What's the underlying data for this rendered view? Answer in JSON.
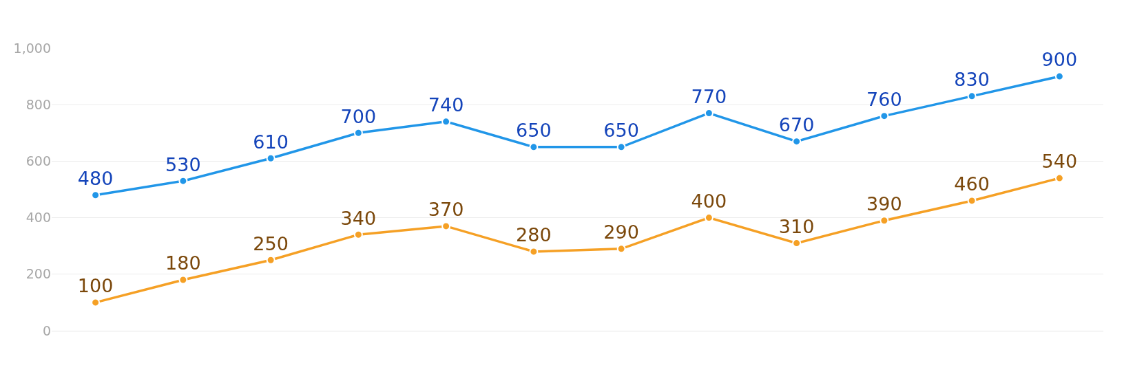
{
  "chart_data": {
    "type": "line",
    "categories": [
      null,
      null,
      null,
      null,
      null,
      null,
      null,
      null,
      null,
      null,
      null,
      null
    ],
    "series": [
      {
        "color": "#2196e8",
        "values": [
          480,
          530,
          610,
          700,
          740,
          650,
          650,
          770,
          670,
          760,
          830,
          900
        ]
      },
      {
        "color": "#f5a025",
        "values": [
          100,
          180,
          250,
          340,
          370,
          280,
          290,
          400,
          310,
          390,
          460,
          540
        ]
      }
    ],
    "ylim": [
      0,
      1000
    ],
    "yticks": [
      0,
      200,
      400,
      600,
      800,
      {
        "value": 1000,
        "label": "1,000"
      }
    ],
    "grid": "y",
    "data_labels": true,
    "marker": "circle",
    "line_style": "solid"
  }
}
